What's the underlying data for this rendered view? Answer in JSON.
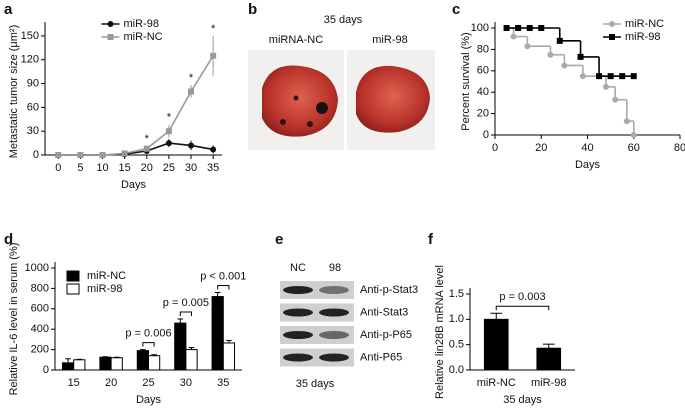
{
  "chart_data": [
    {
      "type": "line",
      "panel_label": "a",
      "xlabel": "Days",
      "ylabel": "Metastatic tumor size (μm²)",
      "x": [
        0,
        5,
        10,
        15,
        20,
        25,
        30,
        35
      ],
      "xlim": [
        -3,
        37
      ],
      "xticks": [
        0,
        5,
        10,
        15,
        20,
        25,
        30,
        35
      ],
      "ylim": [
        0,
        160
      ],
      "yticks": [
        0,
        30,
        60,
        90,
        120,
        150
      ],
      "legend": "upper center",
      "series": [
        {
          "name": "miR-98",
          "color": "#111111",
          "marker": "circle",
          "values": [
            0,
            0,
            0,
            1,
            5,
            15,
            12,
            7
          ],
          "errors": [
            0,
            0,
            0,
            1,
            2,
            5,
            6,
            5
          ]
        },
        {
          "name": "miR-NC",
          "color": "#999999",
          "marker": "square",
          "values": [
            0,
            0,
            0,
            2,
            8,
            30,
            80,
            125
          ],
          "errors": [
            0,
            0,
            0,
            1,
            3,
            8,
            8,
            25
          ]
        }
      ],
      "annotations": [
        {
          "x": 20,
          "text": "*"
        },
        {
          "x": 25,
          "text": "*"
        },
        {
          "x": 30,
          "text": "*"
        },
        {
          "x": 35,
          "text": "*"
        }
      ]
    },
    {
      "type": "line",
      "drawstyle": "steps-post",
      "panel_label": "c",
      "xlabel": "Days",
      "ylabel": "Percent survival (%)",
      "xlim": [
        0,
        80
      ],
      "xticks": [
        0,
        20,
        40,
        60,
        80
      ],
      "ylim": [
        0,
        100
      ],
      "yticks": [
        0,
        20,
        40,
        60,
        80,
        100
      ],
      "legend": "upper right",
      "series": [
        {
          "name": "miR-NC",
          "color": "#aaaaaa",
          "marker": "circle",
          "x": [
            5,
            8,
            14,
            24,
            30,
            38,
            48,
            52,
            57,
            60
          ],
          "values": [
            100,
            92,
            83,
            75,
            65,
            55,
            45,
            33,
            13,
            0
          ]
        },
        {
          "name": "miR-98",
          "color": "#000000",
          "marker": "square",
          "x": [
            5,
            10,
            15,
            20,
            28,
            37,
            45,
            50,
            55,
            60
          ],
          "values": [
            100,
            100,
            100,
            100,
            88,
            73,
            55,
            55,
            55,
            55
          ]
        }
      ]
    },
    {
      "type": "bar",
      "panel_label": "d",
      "xlabel": "Days",
      "ylabel": "Relative IL-6 level in serum (%)",
      "categories": [
        "15",
        "20",
        "25",
        "30",
        "35"
      ],
      "ylim": [
        0,
        1000
      ],
      "yticks": [
        0,
        200,
        400,
        600,
        800,
        1000
      ],
      "legend": "upper left",
      "series": [
        {
          "name": "miR-NC",
          "color": "#000000",
          "values": [
            70,
            125,
            190,
            460,
            720
          ],
          "errors": [
            40,
            5,
            10,
            40,
            40
          ]
        },
        {
          "name": "miR-98",
          "color": "#ffffff",
          "values": [
            100,
            120,
            140,
            200,
            265
          ],
          "errors": [
            5,
            5,
            10,
            20,
            25
          ]
        }
      ],
      "annotations": [
        {
          "category": "25",
          "text": "p = 0.006"
        },
        {
          "category": "30",
          "text": "p = 0.005"
        },
        {
          "category": "35",
          "text": "p < 0.001"
        }
      ]
    },
    {
      "type": "bar",
      "panel_label": "f",
      "xlabel": "35 days",
      "ylabel": "Relative lin28B mRNA level",
      "categories": [
        "miR-NC",
        "miR-98"
      ],
      "ylim": [
        0,
        1.5
      ],
      "yticks": [
        {
          "value": 0,
          "label": "0.0"
        },
        0.5,
        {
          "value": 1,
          "label": "1.0"
        },
        1.5
      ],
      "series": [
        {
          "color": "#000000",
          "values": [
            1.0,
            0.43
          ],
          "errors": [
            0.12,
            0.08
          ]
        }
      ],
      "annotations": [
        {
          "text": "p = 0.003"
        }
      ]
    }
  ],
  "panel_b": {
    "label": "b",
    "title": "35 days",
    "columns": [
      "miRNA-NC",
      "miR-98"
    ]
  },
  "panel_e": {
    "label": "e",
    "lanes": [
      "NC",
      "98"
    ],
    "rows": [
      "Anti-p-Stat3",
      "Anti-Stat3",
      "Anti-p-P65",
      "Anti-P65"
    ],
    "footer": "35 days"
  }
}
